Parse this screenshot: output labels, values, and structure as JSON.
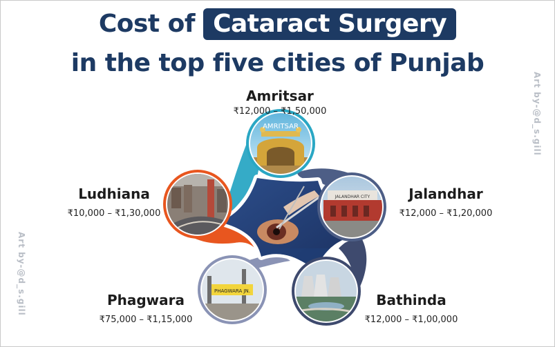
{
  "title": {
    "prefix": "Cost of",
    "highlight": "Cataract Surgery",
    "line2": "in the top five cities of Punjab"
  },
  "watermark": "Art by-@d_s.gill",
  "cities": {
    "amritsar": {
      "name": "Amritsar",
      "cost": "₹12,000 – ₹1,50,000",
      "sign": "AMRITSAR"
    },
    "ludhiana": {
      "name": "Ludhiana",
      "cost": "₹10,000 – ₹1,30,000"
    },
    "jalandhar": {
      "name": "Jalandhar",
      "cost": "₹12,000 – ₹1,20,000",
      "sign": "JALANDHAR CITY"
    },
    "phagwara": {
      "name": "Phagwara",
      "cost": "₹75,000 – ₹1,15,000",
      "sign": "PHAGWARA JN."
    },
    "bathinda": {
      "name": "Bathinda",
      "cost": "₹12,000 – ₹1,00,000"
    }
  },
  "colors": {
    "title": "#1d3a63",
    "amritsar_ring": "#2aa7c4",
    "ludhiana_ring": "#e8561f",
    "jalandhar_ring": "#4d5e86",
    "phagwara_ring": "#8a93b5",
    "bathinda_ring": "#3e4a6e"
  }
}
